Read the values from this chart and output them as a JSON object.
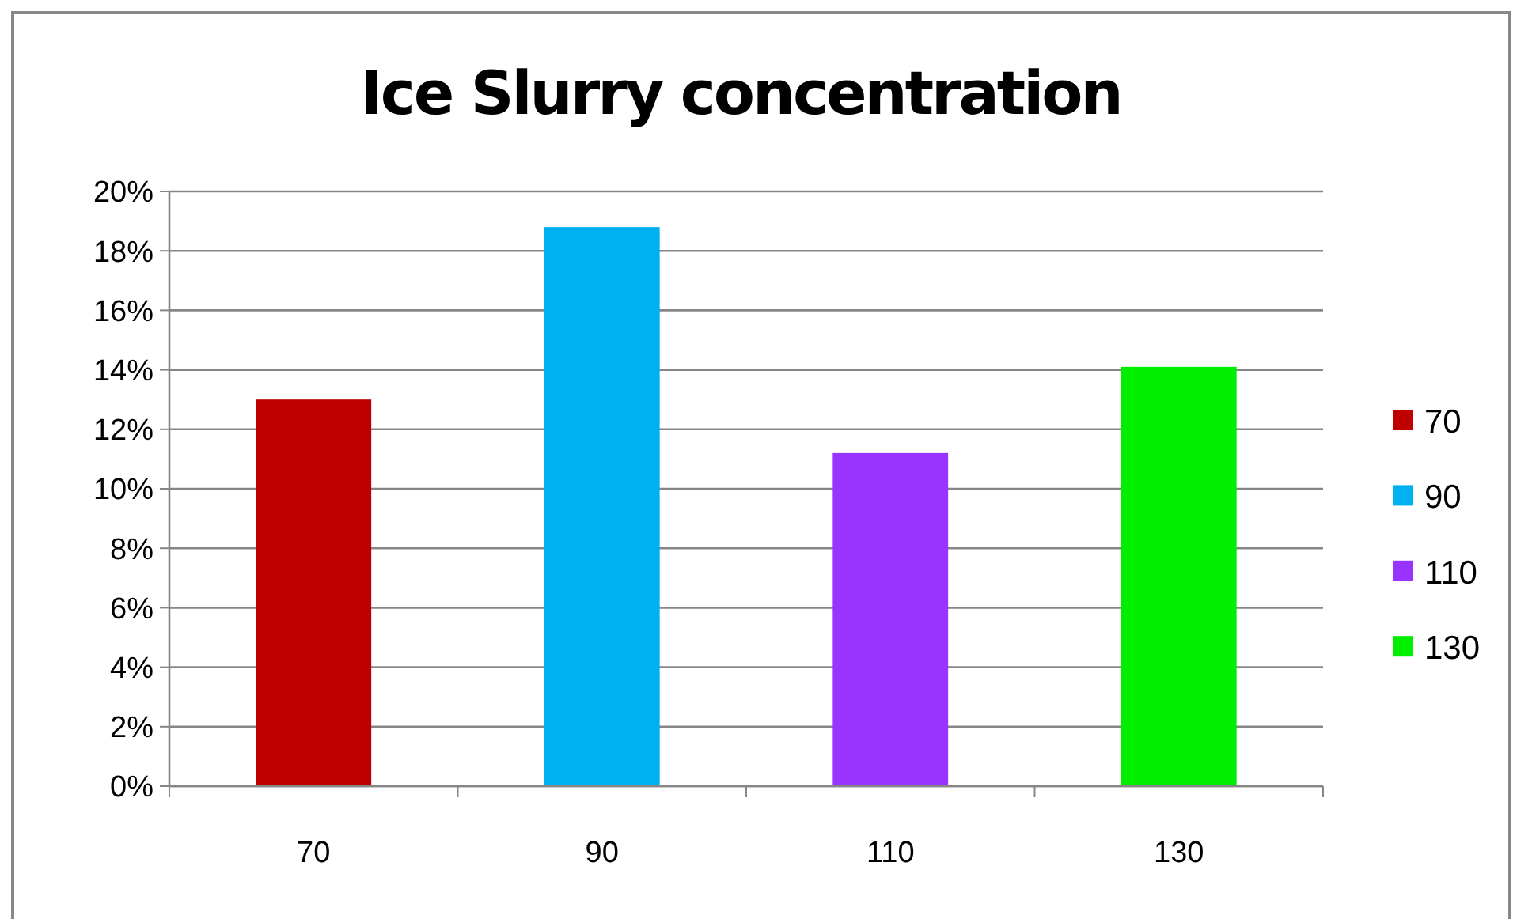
{
  "chart_data": {
    "type": "bar",
    "title": "Ice Slurry concentration",
    "categories": [
      "70",
      "90",
      "110",
      "130"
    ],
    "stacked": true,
    "series": [
      {
        "name": "70",
        "color": "#c00000",
        "values": [
          13,
          null,
          null,
          null
        ]
      },
      {
        "name": "90",
        "color": "#00b0f0",
        "values": [
          null,
          18.8,
          null,
          null
        ]
      },
      {
        "name": "110",
        "color": "#9933ff",
        "values": [
          null,
          null,
          11.2,
          null
        ]
      },
      {
        "name": "130",
        "color": "#00ee00",
        "values": [
          null,
          null,
          null,
          14.1
        ]
      }
    ],
    "ylim": [
      0,
      20
    ],
    "yticks": [
      {
        "value": 0,
        "label": "0%"
      },
      {
        "value": 2,
        "label": "2%"
      },
      {
        "value": 4,
        "label": "4%"
      },
      {
        "value": 6,
        "label": "6%"
      },
      {
        "value": 8,
        "label": "8%"
      },
      {
        "value": 10,
        "label": "10%"
      },
      {
        "value": 12,
        "label": "12%"
      },
      {
        "value": 14,
        "label": "14%"
      },
      {
        "value": 16,
        "label": "16%"
      },
      {
        "value": 18,
        "label": "18%"
      },
      {
        "value": 20,
        "label": "20%"
      }
    ],
    "grid": "y",
    "legend": "right"
  }
}
